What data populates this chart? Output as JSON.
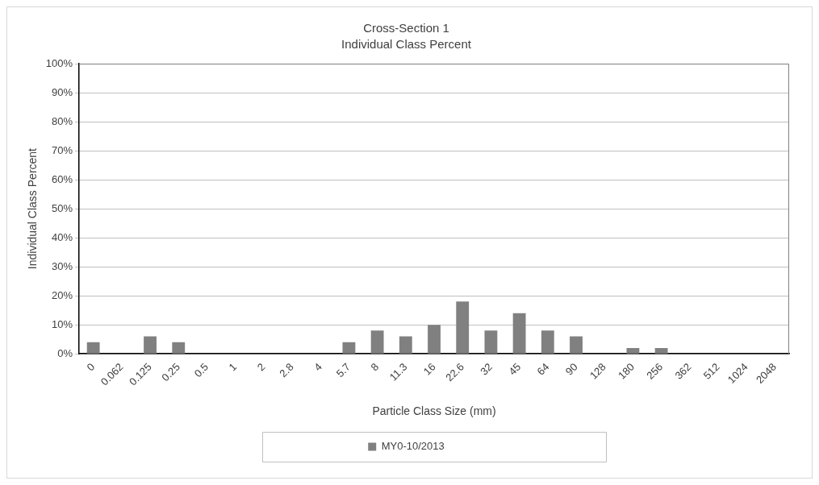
{
  "chart_data": {
    "type": "bar",
    "title": "Cross-Section 1",
    "subtitle": "Individual Class Percent",
    "xlabel": "Particle Class Size (mm)",
    "ylabel": "Individual Class Percent",
    "categories": [
      "0",
      "0.062",
      "0.125",
      "0.25",
      "0.5",
      "1",
      "2",
      "2.8",
      "4",
      "5.7",
      "8",
      "11.3",
      "16",
      "22.6",
      "32",
      "45",
      "64",
      "90",
      "128",
      "180",
      "256",
      "362",
      "512",
      "1024",
      "2048"
    ],
    "series": [
      {
        "name": "MY0-10/2013",
        "color": "#808080",
        "values": [
          4,
          0,
          6,
          4,
          0,
          0,
          0,
          0,
          0,
          4,
          8,
          6,
          10,
          18,
          8,
          14,
          8,
          6,
          0,
          2,
          2,
          0,
          0,
          0,
          0
        ]
      }
    ],
    "ylim": [
      0,
      100
    ],
    "yticks": [
      {
        "value": 0,
        "label": "0%"
      },
      {
        "value": 10,
        "label": "10%"
      },
      {
        "value": 20,
        "label": "20%"
      },
      {
        "value": 30,
        "label": "30%"
      },
      {
        "value": 40,
        "label": "40%"
      },
      {
        "value": 50,
        "label": "50%"
      },
      {
        "value": 60,
        "label": "60%"
      },
      {
        "value": 70,
        "label": "70%"
      },
      {
        "value": 80,
        "label": "80%"
      },
      {
        "value": 90,
        "label": "90%"
      },
      {
        "value": 100,
        "label": "100%"
      }
    ],
    "grid": "y",
    "legend": "bottom"
  }
}
